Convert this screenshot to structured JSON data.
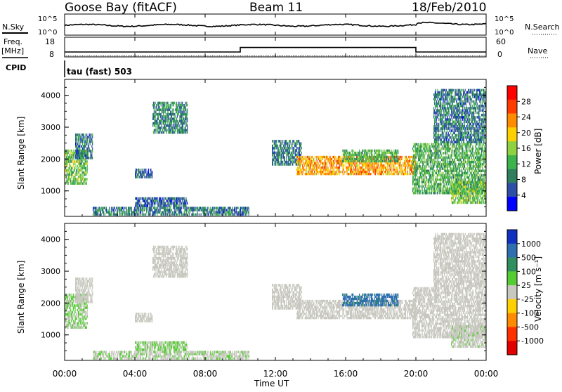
{
  "header": {
    "station": "Goose Bay (fitACF)",
    "beam": "Beam 11",
    "date": "18/Feb/2010"
  },
  "summary_panels": {
    "nsky_label": "N.Sky",
    "nsearch_label": "N.Search",
    "nsky_ticks": [
      "10^5",
      "10^0"
    ],
    "nsearch_ticks": [
      "10^5",
      "10^0"
    ],
    "freq_label_line1": "Freq.",
    "freq_label_line2": "[MHz]",
    "freq_ticks": [
      "18",
      "8"
    ],
    "nave_label": "Nave",
    "nave_ticks": [
      "60",
      "0"
    ],
    "cpid_label": "CPID",
    "cpid_text": "tau (fast) 503"
  },
  "x_axis": {
    "title": "Time UT",
    "ticks": [
      "00:00",
      "04:00",
      "08:00",
      "12:00",
      "16:00",
      "20:00",
      "00:00"
    ],
    "range_hours": [
      0,
      24
    ]
  },
  "power_panel": {
    "ylabel": "Slant Range [km]",
    "yticks": [
      "4000",
      "3000",
      "2000",
      "1000"
    ],
    "colorbar_title": "Power [dB]",
    "colorbar_ticks": [
      "28",
      "24",
      "20",
      "16",
      "12",
      "8",
      "4"
    ],
    "colors": [
      "#0000ff",
      "#2e4fa6",
      "#2f7f5f",
      "#3cb44b",
      "#8fd13f",
      "#ffd000",
      "#ff8c00",
      "#ff3b00",
      "#ff0000"
    ]
  },
  "velocity_panel": {
    "ylabel": "Slant Range [km]",
    "yticks": [
      "4000",
      "3000",
      "2000",
      "1000"
    ],
    "colorbar_title": "Velocity [m s⁻¹]",
    "colorbar_ticks": [
      "1000",
      "500",
      "100",
      "25",
      "-25",
      "-100",
      "-500",
      "-1000"
    ],
    "colors": [
      "#1030c0",
      "#2f6fb0",
      "#2f8f5f",
      "#55cc33",
      "#c8c8c0",
      "#ffd000",
      "#ff8c00",
      "#ff3000",
      "#e00000"
    ]
  },
  "chart_data": {
    "type": "heatmap",
    "x_range": [
      0,
      24
    ],
    "y_range": [
      200,
      4500
    ],
    "y_unit": "km",
    "power_range_db": [
      0,
      32
    ],
    "velocity_range": [
      -1000,
      1000
    ],
    "freq_mhz_segments": [
      {
        "x": [
          0,
          10
        ],
        "value": 10.5
      },
      {
        "x": [
          10,
          20
        ],
        "value": 12.8
      },
      {
        "x": [
          20,
          24
        ],
        "value": 10.5
      }
    ],
    "nave_level": 3,
    "regions": [
      {
        "x": [
          0.0,
          1.3
        ],
        "y": [
          1200,
          2300
        ],
        "power": 14,
        "velocity": 120
      },
      {
        "x": [
          0.6,
          1.6
        ],
        "y": [
          2000,
          2800
        ],
        "power": 8,
        "velocity": 10
      },
      {
        "x": [
          1.6,
          10.5
        ],
        "y": [
          230,
          500
        ],
        "power": 8,
        "velocity": 80
      },
      {
        "x": [
          4.0,
          5.0
        ],
        "y": [
          1400,
          1700
        ],
        "power": 6,
        "velocity": 10
      },
      {
        "x": [
          4.0,
          7.0
        ],
        "y": [
          500,
          800
        ],
        "power": 6,
        "velocity": 110
      },
      {
        "x": [
          5.0,
          7.0
        ],
        "y": [
          2800,
          3800
        ],
        "power": 9,
        "velocity": 15
      },
      {
        "x": [
          11.8,
          13.5
        ],
        "y": [
          1800,
          2600
        ],
        "power": 8,
        "velocity": 0
      },
      {
        "x": [
          13.2,
          20.0
        ],
        "y": [
          1500,
          2100
        ],
        "power": 22,
        "velocity": 0
      },
      {
        "x": [
          15.8,
          19.0
        ],
        "y": [
          1900,
          2300
        ],
        "power": 12,
        "velocity": 600
      },
      {
        "x": [
          19.8,
          24.0
        ],
        "y": [
          900,
          2500
        ],
        "power": 12,
        "velocity": -20
      },
      {
        "x": [
          21.0,
          24.0
        ],
        "y": [
          2500,
          4200
        ],
        "power": 8,
        "velocity": 20
      },
      {
        "x": [
          22.0,
          24.0
        ],
        "y": [
          600,
          1300
        ],
        "power": 14,
        "velocity": 60
      }
    ]
  }
}
